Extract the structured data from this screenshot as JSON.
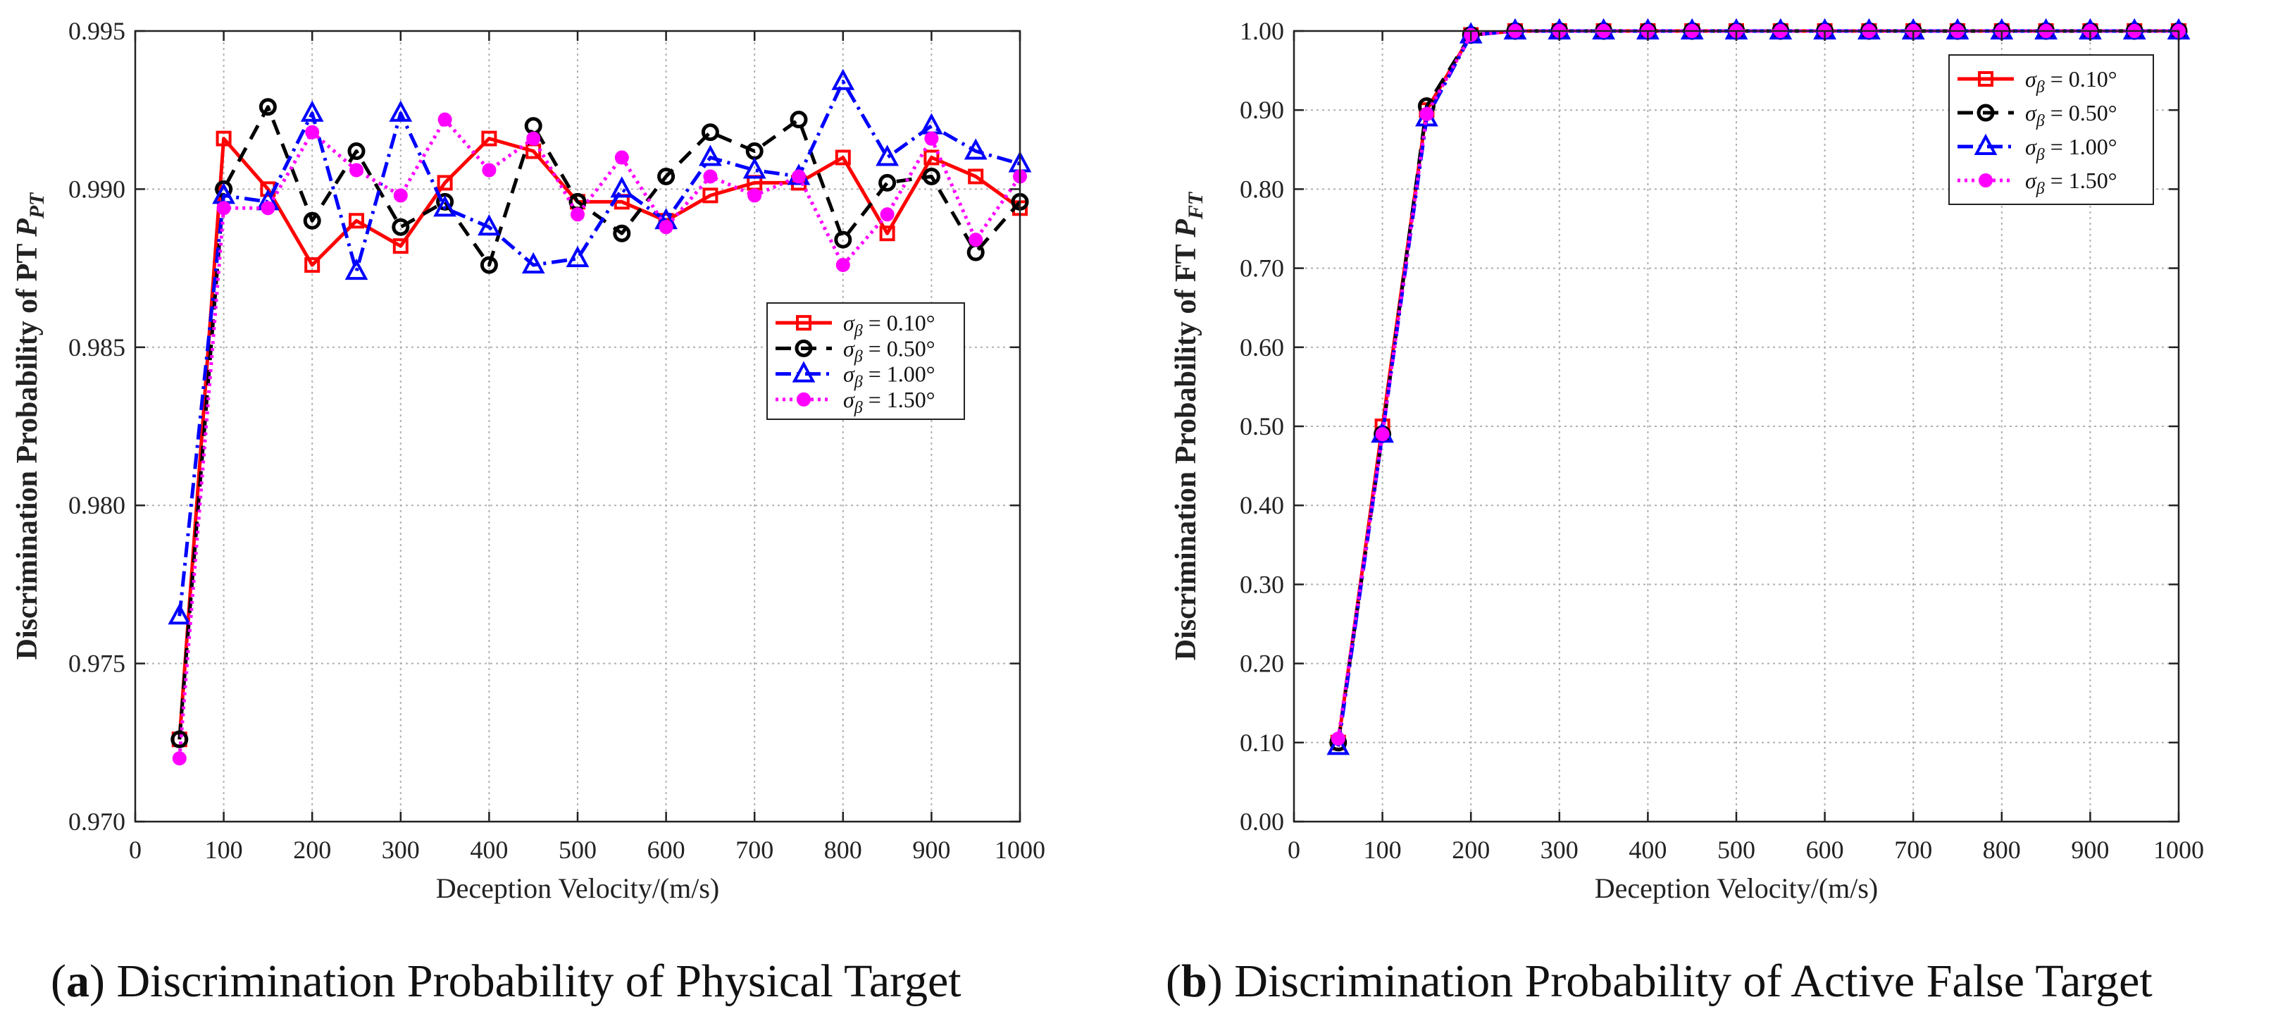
{
  "chart_data": [
    {
      "id": "a",
      "type": "line",
      "title": "",
      "xlabel": "Deception Velocity/(m/s)",
      "ylabel_main": "Discrimination Probability of PT ",
      "ylabel_symbol": "P",
      "ylabel_sub": "PT",
      "xlim": [
        0,
        1000
      ],
      "ylim": [
        0.97,
        0.995
      ],
      "xticks": [
        0,
        100,
        200,
        300,
        400,
        500,
        600,
        700,
        800,
        900,
        1000
      ],
      "xtick_labels": [
        "0",
        "100",
        "200",
        "300",
        "400",
        "500",
        "600",
        "700",
        "800",
        "900",
        "1000"
      ],
      "yticks": [
        0.97,
        0.975,
        0.98,
        0.985,
        0.99,
        0.995
      ],
      "ytick_labels": [
        "0.970",
        "0.975",
        "0.980",
        "0.985",
        "0.990",
        "0.995"
      ],
      "grid": true,
      "legend_position": "center-right",
      "x": [
        50,
        100,
        150,
        200,
        250,
        300,
        350,
        400,
        450,
        500,
        550,
        600,
        650,
        700,
        750,
        800,
        850,
        900,
        950,
        1000
      ],
      "series": [
        {
          "name": "σβ = 0.10°",
          "sigma": "0.10°",
          "color": "#ff0000",
          "dash": "",
          "marker": "square",
          "values": [
            0.9726,
            0.9916,
            0.99,
            0.9876,
            0.989,
            0.9882,
            0.9902,
            0.9916,
            0.9912,
            0.9896,
            0.9896,
            0.989,
            0.9898,
            0.9902,
            0.9902,
            0.991,
            0.9886,
            0.991,
            0.9904,
            0.9894
          ]
        },
        {
          "name": "σβ = 0.50°",
          "sigma": "0.50°",
          "color": "#000000",
          "dash": "22,14",
          "marker": "circle",
          "values": [
            0.9726,
            0.99,
            0.9926,
            0.989,
            0.9912,
            0.9888,
            0.9896,
            0.9876,
            0.992,
            0.9896,
            0.9886,
            0.9904,
            0.9918,
            0.9912,
            0.9922,
            0.9884,
            0.9902,
            0.9904,
            0.988,
            0.9896
          ]
        },
        {
          "name": "σβ = 1.00°",
          "sigma": "1.00°",
          "color": "#0000ff",
          "dash": "22,8,4,8",
          "marker": "triangle",
          "values": [
            0.9765,
            0.9898,
            0.9896,
            0.9924,
            0.9874,
            0.9924,
            0.9894,
            0.9888,
            0.9876,
            0.9878,
            0.99,
            0.989,
            0.991,
            0.9906,
            0.9904,
            0.9934,
            0.991,
            0.992,
            0.9912,
            0.9908
          ]
        },
        {
          "name": "σβ = 1.50°",
          "sigma": "1.50°",
          "color": "#ff00ff",
          "dash": "4,6",
          "marker": "dot",
          "values": [
            0.972,
            0.9894,
            0.9894,
            0.9918,
            0.9906,
            0.9898,
            0.9922,
            0.9906,
            0.9916,
            0.9892,
            0.991,
            0.9888,
            0.9904,
            0.9898,
            0.9904,
            0.9876,
            0.9892,
            0.9916,
            0.9884,
            0.9904
          ]
        }
      ]
    },
    {
      "id": "b",
      "type": "line",
      "title": "",
      "xlabel": "Deception Velocity/(m/s)",
      "ylabel_main": "Discrimination Probability of FT ",
      "ylabel_symbol": "P",
      "ylabel_sub": "FT",
      "xlim": [
        0,
        1000
      ],
      "ylim": [
        0,
        1
      ],
      "xticks": [
        0,
        100,
        200,
        300,
        400,
        500,
        600,
        700,
        800,
        900,
        1000
      ],
      "xtick_labels": [
        "0",
        "100",
        "200",
        "300",
        "400",
        "500",
        "600",
        "700",
        "800",
        "900",
        "1000"
      ],
      "yticks": [
        0,
        0.1,
        0.2,
        0.3,
        0.4,
        0.5,
        0.6,
        0.7,
        0.8,
        0.9,
        1.0
      ],
      "ytick_labels": [
        "0.00",
        "0.10",
        "0.20",
        "0.30",
        "0.40",
        "0.50",
        "0.60",
        "0.70",
        "0.80",
        "0.90",
        "1.00"
      ],
      "grid": true,
      "legend_position": "top-right",
      "x": [
        50,
        100,
        150,
        200,
        250,
        300,
        350,
        400,
        450,
        500,
        550,
        600,
        650,
        700,
        750,
        800,
        850,
        900,
        950,
        1000
      ],
      "series": [
        {
          "name": "σβ = 0.10°",
          "sigma": "0.10°",
          "color": "#ff0000",
          "dash": "",
          "marker": "square",
          "values": [
            0.1,
            0.5,
            0.9,
            0.995,
            1.0,
            1.0,
            1.0,
            1.0,
            1.0,
            1.0,
            1.0,
            1.0,
            1.0,
            1.0,
            1.0,
            1.0,
            1.0,
            1.0,
            1.0,
            1.0
          ]
        },
        {
          "name": "σβ = 0.50°",
          "sigma": "0.50°",
          "color": "#000000",
          "dash": "22,14",
          "marker": "circle",
          "values": [
            0.1,
            0.49,
            0.905,
            0.995,
            1.0,
            1.0,
            1.0,
            1.0,
            1.0,
            1.0,
            1.0,
            1.0,
            1.0,
            1.0,
            1.0,
            1.0,
            1.0,
            1.0,
            1.0,
            1.0
          ]
        },
        {
          "name": "σβ = 1.00°",
          "sigma": "1.00°",
          "color": "#0000ff",
          "dash": "22,8,4,8",
          "marker": "triangle",
          "values": [
            0.095,
            0.49,
            0.89,
            0.995,
            1.0,
            1.0,
            1.0,
            1.0,
            1.0,
            1.0,
            1.0,
            1.0,
            1.0,
            1.0,
            1.0,
            1.0,
            1.0,
            1.0,
            1.0,
            1.0
          ]
        },
        {
          "name": "σβ = 1.50°",
          "sigma": "1.50°",
          "color": "#ff00ff",
          "dash": "4,6",
          "marker": "dot",
          "values": [
            0.105,
            0.49,
            0.895,
            0.995,
            1.0,
            1.0,
            1.0,
            1.0,
            1.0,
            1.0,
            1.0,
            1.0,
            1.0,
            1.0,
            1.0,
            1.0,
            1.0,
            1.0,
            1.0,
            1.0
          ]
        }
      ]
    }
  ],
  "captions": {
    "a": {
      "label": "(a)",
      "letter": "a",
      "text": " Discrimination Probability of Physical Target"
    },
    "b": {
      "label": "(b)",
      "letter": "b",
      "text": " Discrimination Probability of Active False Target"
    }
  }
}
